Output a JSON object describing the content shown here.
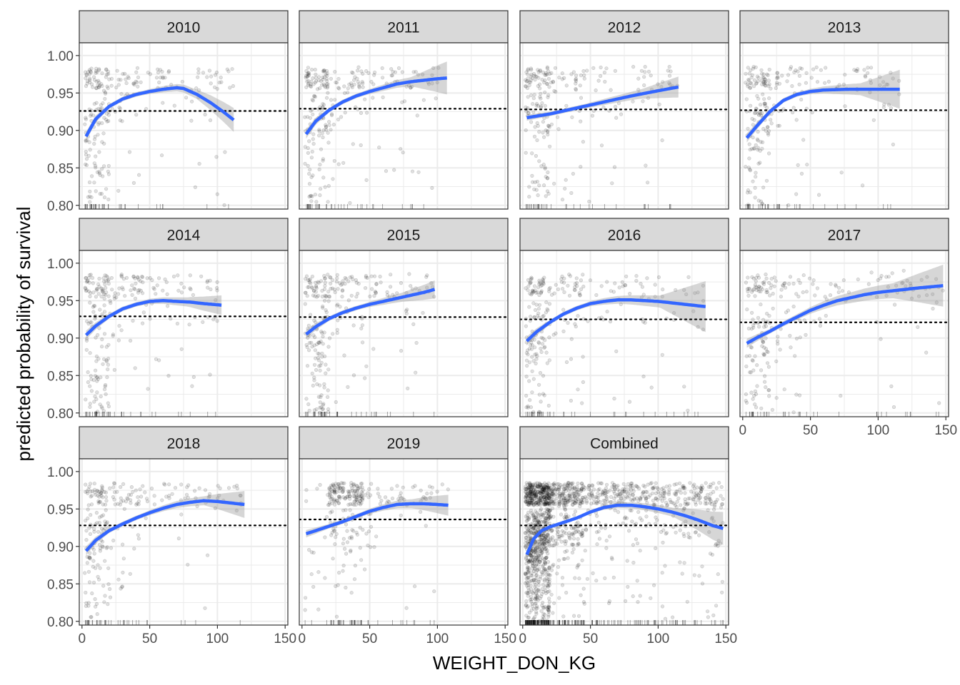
{
  "chart_data": {
    "type": "scatter",
    "facet_type": "faceted-scatter-with-smooth",
    "xlabel": "WEIGHT_DON_KG",
    "ylabel": "predicted probability of survival",
    "xlim": [
      -2,
      152
    ],
    "ylim": [
      0.795,
      1.017
    ],
    "x_ticks": [
      0,
      50,
      100,
      150
    ],
    "y_ticks": [
      0.8,
      0.85,
      0.9,
      0.95,
      1.0
    ],
    "y_tick_labels": [
      "0.80",
      "0.85",
      "0.90",
      "0.95",
      "1.00"
    ],
    "grid": true,
    "colors": {
      "smooth_line": "#3366FF",
      "confidence_band": "#999999",
      "points": "#000000",
      "strip_fill": "#D9D9D9",
      "grid": "#EBEBEB",
      "panel_border": "#333333"
    },
    "panels": [
      {
        "label": "2010",
        "hline": 0.926,
        "x_max": 112,
        "band_halfwidth": [
          0.006,
          0.003,
          0.003,
          0.006,
          0.016
        ],
        "smooth": [
          [
            3,
            0.892
          ],
          [
            10,
            0.915
          ],
          [
            20,
            0.932
          ],
          [
            30,
            0.942
          ],
          [
            40,
            0.948
          ],
          [
            50,
            0.952
          ],
          [
            60,
            0.955
          ],
          [
            70,
            0.957
          ],
          [
            75,
            0.956
          ],
          [
            85,
            0.948
          ],
          [
            95,
            0.937
          ],
          [
            105,
            0.924
          ],
          [
            112,
            0.914
          ]
        ],
        "points": {
          "seed": 101,
          "n": 230,
          "shape": "young",
          "xmax": 112
        }
      },
      {
        "label": "2011",
        "hline": 0.929,
        "x_max": 107,
        "band_halfwidth": [
          0.006,
          0.003,
          0.003,
          0.006,
          0.022
        ],
        "smooth": [
          [
            3,
            0.895
          ],
          [
            10,
            0.912
          ],
          [
            20,
            0.927
          ],
          [
            30,
            0.938
          ],
          [
            40,
            0.946
          ],
          [
            50,
            0.952
          ],
          [
            60,
            0.957
          ],
          [
            70,
            0.962
          ],
          [
            80,
            0.965
          ],
          [
            90,
            0.967
          ],
          [
            100,
            0.969
          ],
          [
            107,
            0.97
          ]
        ],
        "points": {
          "seed": 202,
          "n": 240,
          "shape": "young",
          "xmax": 107
        }
      },
      {
        "label": "2012",
        "hline": 0.928,
        "x_max": 115,
        "band_halfwidth": [
          0.004,
          0.003,
          0.003,
          0.006,
          0.014
        ],
        "smooth": [
          [
            3,
            0.917
          ],
          [
            20,
            0.922
          ],
          [
            40,
            0.93
          ],
          [
            60,
            0.938
          ],
          [
            80,
            0.946
          ],
          [
            100,
            0.953
          ],
          [
            115,
            0.958
          ]
        ],
        "points": {
          "seed": 303,
          "n": 220,
          "shape": "young",
          "xmax": 115
        }
      },
      {
        "label": "2013",
        "hline": 0.927,
        "x_max": 116,
        "band_halfwidth": [
          0.006,
          0.003,
          0.003,
          0.008,
          0.026
        ],
        "smooth": [
          [
            3,
            0.89
          ],
          [
            10,
            0.905
          ],
          [
            20,
            0.925
          ],
          [
            30,
            0.94
          ],
          [
            40,
            0.948
          ],
          [
            50,
            0.952
          ],
          [
            60,
            0.954
          ],
          [
            80,
            0.955
          ],
          [
            100,
            0.955
          ],
          [
            116,
            0.955
          ]
        ],
        "points": {
          "seed": 404,
          "n": 230,
          "shape": "young",
          "xmax": 116
        }
      },
      {
        "label": "2014",
        "hline": 0.929,
        "x_max": 103,
        "band_halfwidth": [
          0.006,
          0.003,
          0.003,
          0.006,
          0.013
        ],
        "smooth": [
          [
            3,
            0.904
          ],
          [
            10,
            0.916
          ],
          [
            20,
            0.929
          ],
          [
            30,
            0.939
          ],
          [
            40,
            0.945
          ],
          [
            50,
            0.949
          ],
          [
            60,
            0.95
          ],
          [
            70,
            0.949
          ],
          [
            80,
            0.948
          ],
          [
            90,
            0.946
          ],
          [
            103,
            0.944
          ]
        ],
        "points": {
          "seed": 505,
          "n": 230,
          "shape": "young",
          "xmax": 103
        }
      },
      {
        "label": "2015",
        "hline": 0.928,
        "x_max": 98,
        "band_halfwidth": [
          0.006,
          0.003,
          0.003,
          0.006,
          0.012
        ],
        "smooth": [
          [
            3,
            0.905
          ],
          [
            10,
            0.915
          ],
          [
            20,
            0.926
          ],
          [
            30,
            0.934
          ],
          [
            40,
            0.94
          ],
          [
            50,
            0.945
          ],
          [
            60,
            0.949
          ],
          [
            70,
            0.953
          ],
          [
            80,
            0.957
          ],
          [
            90,
            0.961
          ],
          [
            98,
            0.965
          ]
        ],
        "points": {
          "seed": 606,
          "n": 240,
          "shape": "young",
          "xmax": 98
        }
      },
      {
        "label": "2016",
        "hline": 0.925,
        "x_max": 135,
        "band_halfwidth": [
          0.006,
          0.003,
          0.003,
          0.008,
          0.034
        ],
        "smooth": [
          [
            3,
            0.896
          ],
          [
            10,
            0.908
          ],
          [
            20,
            0.921
          ],
          [
            30,
            0.932
          ],
          [
            40,
            0.94
          ],
          [
            50,
            0.946
          ],
          [
            60,
            0.949
          ],
          [
            70,
            0.951
          ],
          [
            80,
            0.951
          ],
          [
            90,
            0.95
          ],
          [
            100,
            0.949
          ],
          [
            110,
            0.947
          ],
          [
            120,
            0.945
          ],
          [
            135,
            0.942
          ]
        ],
        "points": {
          "seed": 707,
          "n": 240,
          "shape": "young",
          "xmax": 135
        }
      },
      {
        "label": "2017",
        "hline": 0.921,
        "x_max": 148,
        "band_halfwidth": [
          0.006,
          0.003,
          0.004,
          0.01,
          0.028
        ],
        "smooth": [
          [
            3,
            0.893
          ],
          [
            10,
            0.9
          ],
          [
            20,
            0.909
          ],
          [
            30,
            0.919
          ],
          [
            40,
            0.928
          ],
          [
            50,
            0.937
          ],
          [
            60,
            0.944
          ],
          [
            70,
            0.95
          ],
          [
            80,
            0.954
          ],
          [
            90,
            0.958
          ],
          [
            100,
            0.961
          ],
          [
            110,
            0.963
          ],
          [
            120,
            0.965
          ],
          [
            130,
            0.967
          ],
          [
            148,
            0.97
          ]
        ],
        "points": {
          "seed": 808,
          "n": 230,
          "shape": "young",
          "xmax": 148
        }
      },
      {
        "label": "2018",
        "hline": 0.928,
        "x_max": 120,
        "band_halfwidth": [
          0.006,
          0.003,
          0.003,
          0.006,
          0.018
        ],
        "smooth": [
          [
            3,
            0.894
          ],
          [
            10,
            0.908
          ],
          [
            20,
            0.921
          ],
          [
            30,
            0.93
          ],
          [
            40,
            0.938
          ],
          [
            50,
            0.945
          ],
          [
            60,
            0.951
          ],
          [
            70,
            0.956
          ],
          [
            80,
            0.959
          ],
          [
            90,
            0.961
          ],
          [
            100,
            0.96
          ],
          [
            110,
            0.958
          ],
          [
            120,
            0.956
          ]
        ],
        "points": {
          "seed": 909,
          "n": 230,
          "shape": "young",
          "xmax": 120
        }
      },
      {
        "label": "2019",
        "hline": 0.936,
        "x_max": 108,
        "band_halfwidth": [
          0.005,
          0.003,
          0.003,
          0.006,
          0.014
        ],
        "smooth": [
          [
            3,
            0.917
          ],
          [
            10,
            0.921
          ],
          [
            20,
            0.927
          ],
          [
            30,
            0.933
          ],
          [
            40,
            0.94
          ],
          [
            50,
            0.947
          ],
          [
            60,
            0.952
          ],
          [
            70,
            0.956
          ],
          [
            80,
            0.957
          ],
          [
            90,
            0.957
          ],
          [
            100,
            0.956
          ],
          [
            108,
            0.955
          ]
        ],
        "points": {
          "seed": 1010,
          "n": 260,
          "shape": "flat",
          "xmax": 108
        }
      },
      {
        "label": "Combined",
        "hline": 0.928,
        "x_max": 148,
        "band_halfwidth": [
          0.003,
          0.002,
          0.002,
          0.006,
          0.022
        ],
        "smooth": [
          [
            3,
            0.889
          ],
          [
            8,
            0.91
          ],
          [
            14,
            0.921
          ],
          [
            20,
            0.926
          ],
          [
            30,
            0.932
          ],
          [
            40,
            0.938
          ],
          [
            50,
            0.946
          ],
          [
            60,
            0.952
          ],
          [
            70,
            0.955
          ],
          [
            80,
            0.955
          ],
          [
            90,
            0.953
          ],
          [
            100,
            0.95
          ],
          [
            110,
            0.946
          ],
          [
            120,
            0.941
          ],
          [
            130,
            0.935
          ],
          [
            140,
            0.928
          ],
          [
            148,
            0.924
          ]
        ],
        "points": {
          "seed": 1111,
          "n": 1500,
          "shape": "young",
          "xmax": 148
        }
      }
    ]
  }
}
